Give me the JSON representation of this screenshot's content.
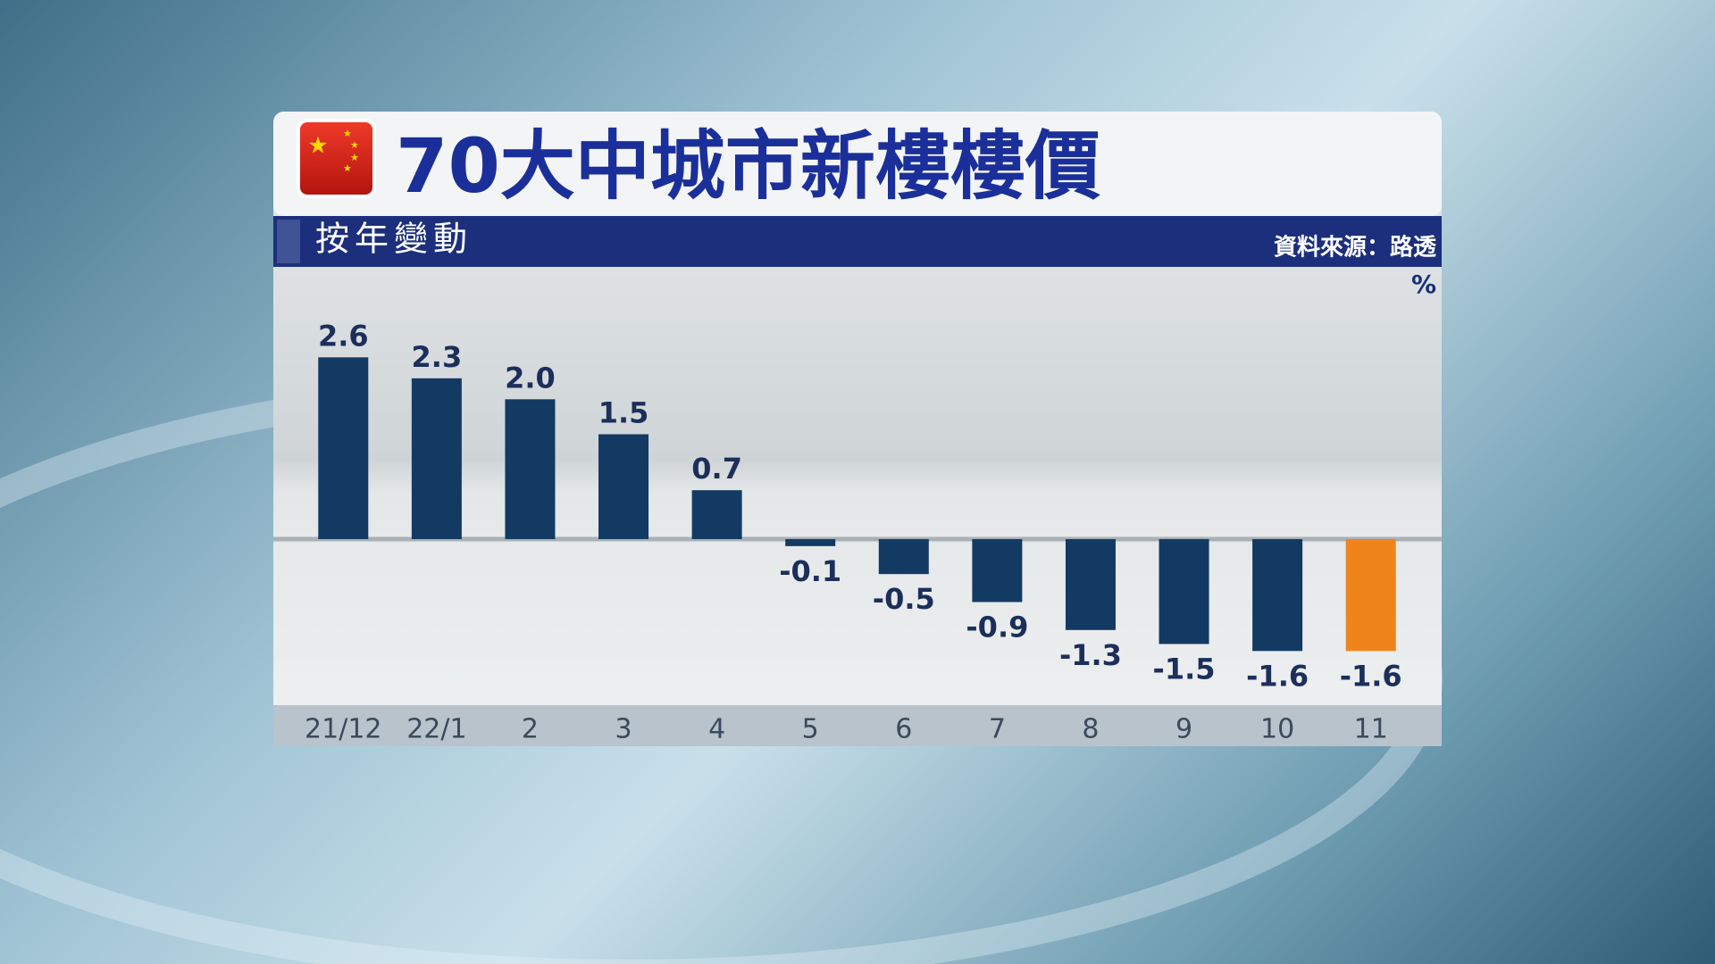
{
  "chart_data": {
    "type": "bar",
    "title": "70大中城市新樓樓價",
    "subtitle": "按年變動",
    "source": "資料來源：路透",
    "y_unit": "%",
    "categories": [
      "21/12",
      "22/1",
      "2",
      "3",
      "4",
      "5",
      "6",
      "7",
      "8",
      "9",
      "10",
      "11"
    ],
    "values": [
      2.6,
      2.3,
      2.0,
      1.5,
      0.7,
      -0.1,
      -0.5,
      -0.9,
      -1.3,
      -1.5,
      -1.6,
      -1.6
    ],
    "value_labels": [
      "2.6",
      "2.3",
      "2.0",
      "1.5",
      "0.7",
      "-0.1",
      "-0.5",
      "-0.9",
      "-1.3",
      "-1.5",
      "-1.6",
      "-1.6"
    ],
    "colors": [
      "#123a63",
      "#123a63",
      "#123a63",
      "#123a63",
      "#123a63",
      "#123a63",
      "#123a63",
      "#123a63",
      "#123a63",
      "#123a63",
      "#123a63",
      "#f0841c"
    ],
    "ylim": [
      -2.4,
      3.6
    ]
  }
}
